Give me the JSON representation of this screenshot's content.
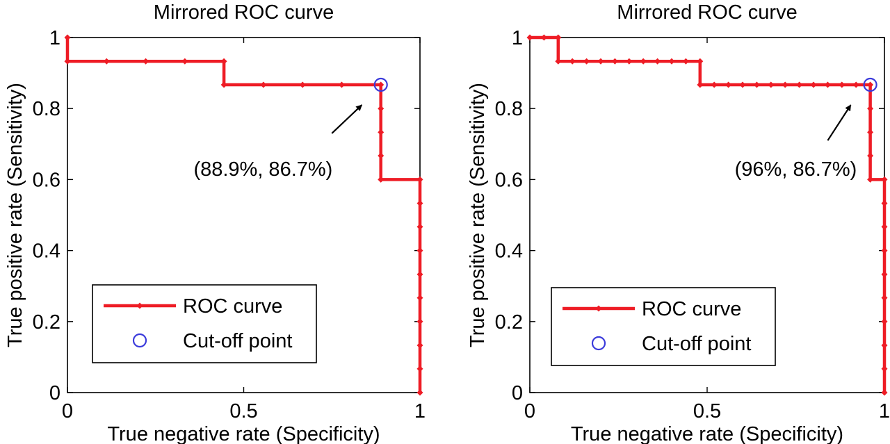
{
  "chart_data": [
    {
      "type": "line",
      "title": "Mirrored ROC curve",
      "xlabel": "True negative rate (Specificity)",
      "ylabel": "True positive rate (Sensitivity)",
      "xlim": [
        0,
        1
      ],
      "ylim": [
        0,
        1
      ],
      "xticks": [
        "0",
        "0.5",
        "1"
      ],
      "yticks": [
        "0",
        "0.2",
        "0.4",
        "0.6",
        "0.8",
        "1"
      ],
      "grid": false,
      "legend": {
        "placement": "bottom-left",
        "entries": [
          "ROC curve",
          "Cut-off point"
        ]
      },
      "series": [
        {
          "name": "ROC curve",
          "color": "#ee1c25",
          "marker": "diamond",
          "x": [
            0,
            0,
            0.111,
            0.222,
            0.333,
            0.444,
            0.444,
            0.556,
            0.667,
            0.778,
            0.889,
            0.889,
            0.889,
            0.889,
            0.889,
            1,
            1,
            1,
            1,
            1,
            1,
            1,
            1,
            1,
            1
          ],
          "y": [
            1,
            0.933,
            0.933,
            0.933,
            0.933,
            0.933,
            0.867,
            0.867,
            0.867,
            0.867,
            0.867,
            0.8,
            0.733,
            0.667,
            0.6,
            0.6,
            0.533,
            0.467,
            0.4,
            0.333,
            0.267,
            0.2,
            0.133,
            0.067,
            0
          ]
        },
        {
          "name": "Cut-off point",
          "color": "#3b3bdb",
          "marker": "circle",
          "x": [
            0.889
          ],
          "y": [
            0.867
          ]
        }
      ],
      "annotations": [
        {
          "text": "(88.9%, 86.7%)",
          "x": 0.555,
          "y": 0.63,
          "arrow_from": [
            0.75,
            0.73
          ],
          "arrow_to": [
            0.835,
            0.81
          ]
        }
      ]
    },
    {
      "type": "line",
      "title": "Mirrored ROC curve",
      "xlabel": "True negative rate (Specificity)",
      "ylabel": "True positive rate (Sensitivity)",
      "xlim": [
        0,
        1
      ],
      "ylim": [
        0,
        1
      ],
      "xticks": [
        "0",
        "0.5",
        "1"
      ],
      "yticks": [
        "0",
        "0.2",
        "0.4",
        "0.6",
        "0.8",
        "1"
      ],
      "grid": false,
      "legend": {
        "placement": "bottom-left",
        "entries": [
          "ROC curve",
          "Cut-off point"
        ]
      },
      "series": [
        {
          "name": "ROC curve",
          "color": "#ee1c25",
          "marker": "diamond",
          "x": [
            0,
            0.04,
            0.08,
            0.08,
            0.12,
            0.16,
            0.2,
            0.24,
            0.28,
            0.32,
            0.36,
            0.4,
            0.44,
            0.48,
            0.48,
            0.52,
            0.56,
            0.6,
            0.64,
            0.68,
            0.72,
            0.76,
            0.8,
            0.84,
            0.88,
            0.92,
            0.96,
            0.96,
            0.96,
            0.96,
            0.96,
            1,
            1,
            1,
            1,
            1,
            1,
            1,
            1,
            1,
            1
          ],
          "y": [
            1,
            1,
            1,
            0.933,
            0.933,
            0.933,
            0.933,
            0.933,
            0.933,
            0.933,
            0.933,
            0.933,
            0.933,
            0.933,
            0.867,
            0.867,
            0.867,
            0.867,
            0.867,
            0.867,
            0.867,
            0.867,
            0.867,
            0.867,
            0.867,
            0.867,
            0.867,
            0.8,
            0.733,
            0.667,
            0.6,
            0.6,
            0.533,
            0.467,
            0.4,
            0.333,
            0.267,
            0.2,
            0.133,
            0.067,
            0
          ]
        },
        {
          "name": "Cut-off point",
          "color": "#3b3bdb",
          "marker": "circle",
          "x": [
            0.96
          ],
          "y": [
            0.867
          ]
        }
      ],
      "annotations": [
        {
          "text": "(96%, 86.7%)",
          "x": 0.75,
          "y": 0.63,
          "arrow_from": [
            0.84,
            0.71
          ],
          "arrow_to": [
            0.905,
            0.81
          ]
        }
      ]
    }
  ]
}
